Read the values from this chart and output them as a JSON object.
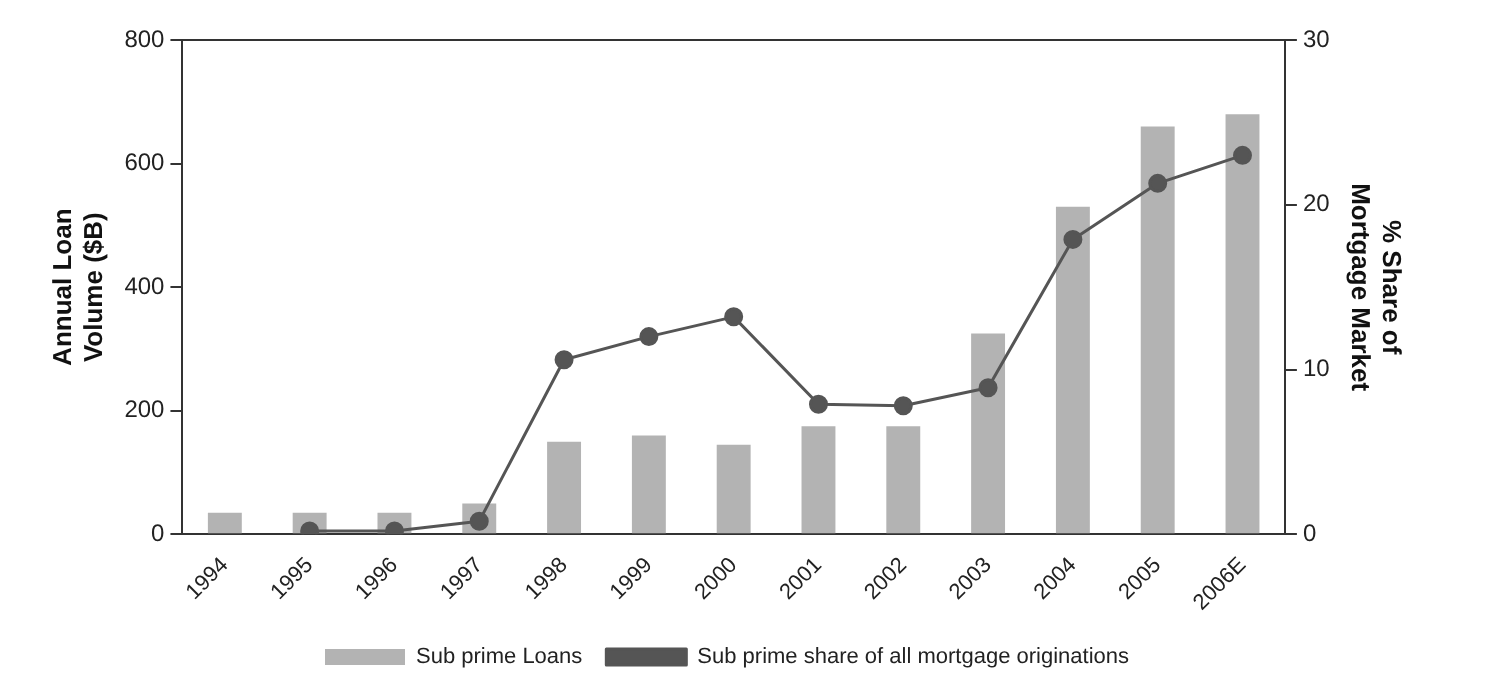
{
  "chart_data": {
    "type": "bar",
    "categories": [
      "1994",
      "1995",
      "1996",
      "1997",
      "1998",
      "1999",
      "2000",
      "2001",
      "2002",
      "2003",
      "2004",
      "2005",
      "2006E"
    ],
    "series": [
      {
        "name": "Sub prime Loans",
        "color": "#b3b3b3",
        "values": [
          35,
          35,
          35,
          50,
          150,
          160,
          145,
          175,
          175,
          325,
          530,
          660,
          680
        ]
      },
      {
        "name": "Sub prime share of all mortgage originations",
        "type": "line",
        "axis": "y2",
        "color": "#555555",
        "values": [
          null,
          0.2,
          0.2,
          0.8,
          10.6,
          12,
          13.2,
          7.9,
          7.8,
          8.9,
          17.9,
          21.3,
          23
        ]
      }
    ],
    "ylabel": "Annual Loan\nVolume ($B)",
    "y2label": "% Share of\nMortgage Market",
    "ylim": [
      0,
      800
    ],
    "yticks": [
      0,
      200,
      400,
      600,
      800
    ],
    "y2lim": [
      0,
      30
    ],
    "y2ticks": [
      0,
      10,
      20,
      30
    ],
    "marker": "circle",
    "line_style": "solid",
    "grid": false,
    "legend": "bottom"
  }
}
